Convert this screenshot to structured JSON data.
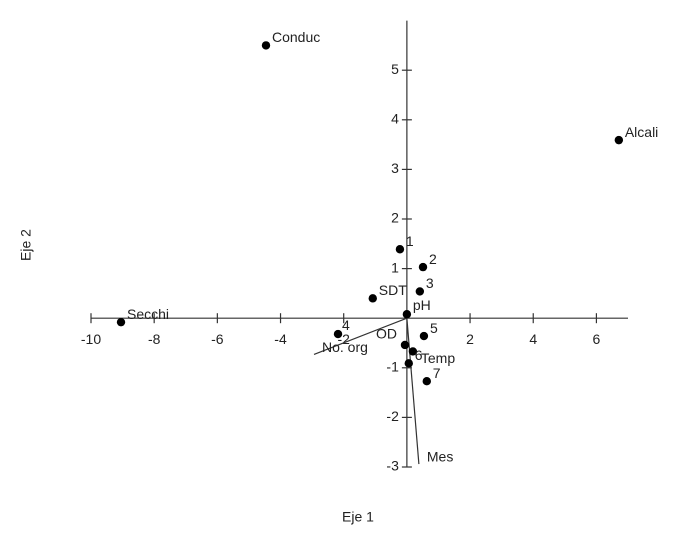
{
  "chart_data": {
    "type": "biplot",
    "x_label": "Eje 1",
    "y_label": "Eje 2",
    "xlim": [
      -10,
      7
    ],
    "ylim": [
      -3,
      6
    ],
    "xticks": [
      -10,
      -8,
      -6,
      -4,
      -2,
      2,
      4,
      6
    ],
    "yticks": [
      -3,
      -2,
      -1,
      1,
      2,
      3,
      4,
      5
    ],
    "labels": [
      "Conduc",
      "Alcali",
      "Secchi",
      "1",
      "2",
      "3",
      "SDT",
      "pH",
      "4",
      "5",
      "OD",
      "Temp",
      "6",
      "7"
    ],
    "x": [
      -4.46,
      6.71,
      -9.05,
      -0.22,
      0.51,
      0.41,
      -1.08,
      0.0,
      -2.18,
      0.54,
      -0.06,
      0.19,
      0.06,
      0.63
    ],
    "values": [
      5.5,
      3.59,
      -0.08,
      1.39,
      1.03,
      0.54,
      0.4,
      0.08,
      -0.32,
      -0.36,
      -0.54,
      -0.67,
      -0.91,
      -1.27
    ],
    "color": "#000000",
    "vectors": [
      {
        "label": "Mes",
        "x": 0.38,
        "y": -2.94
      },
      {
        "label": "No. org",
        "x": -2.94,
        "y": -0.73
      }
    ]
  }
}
